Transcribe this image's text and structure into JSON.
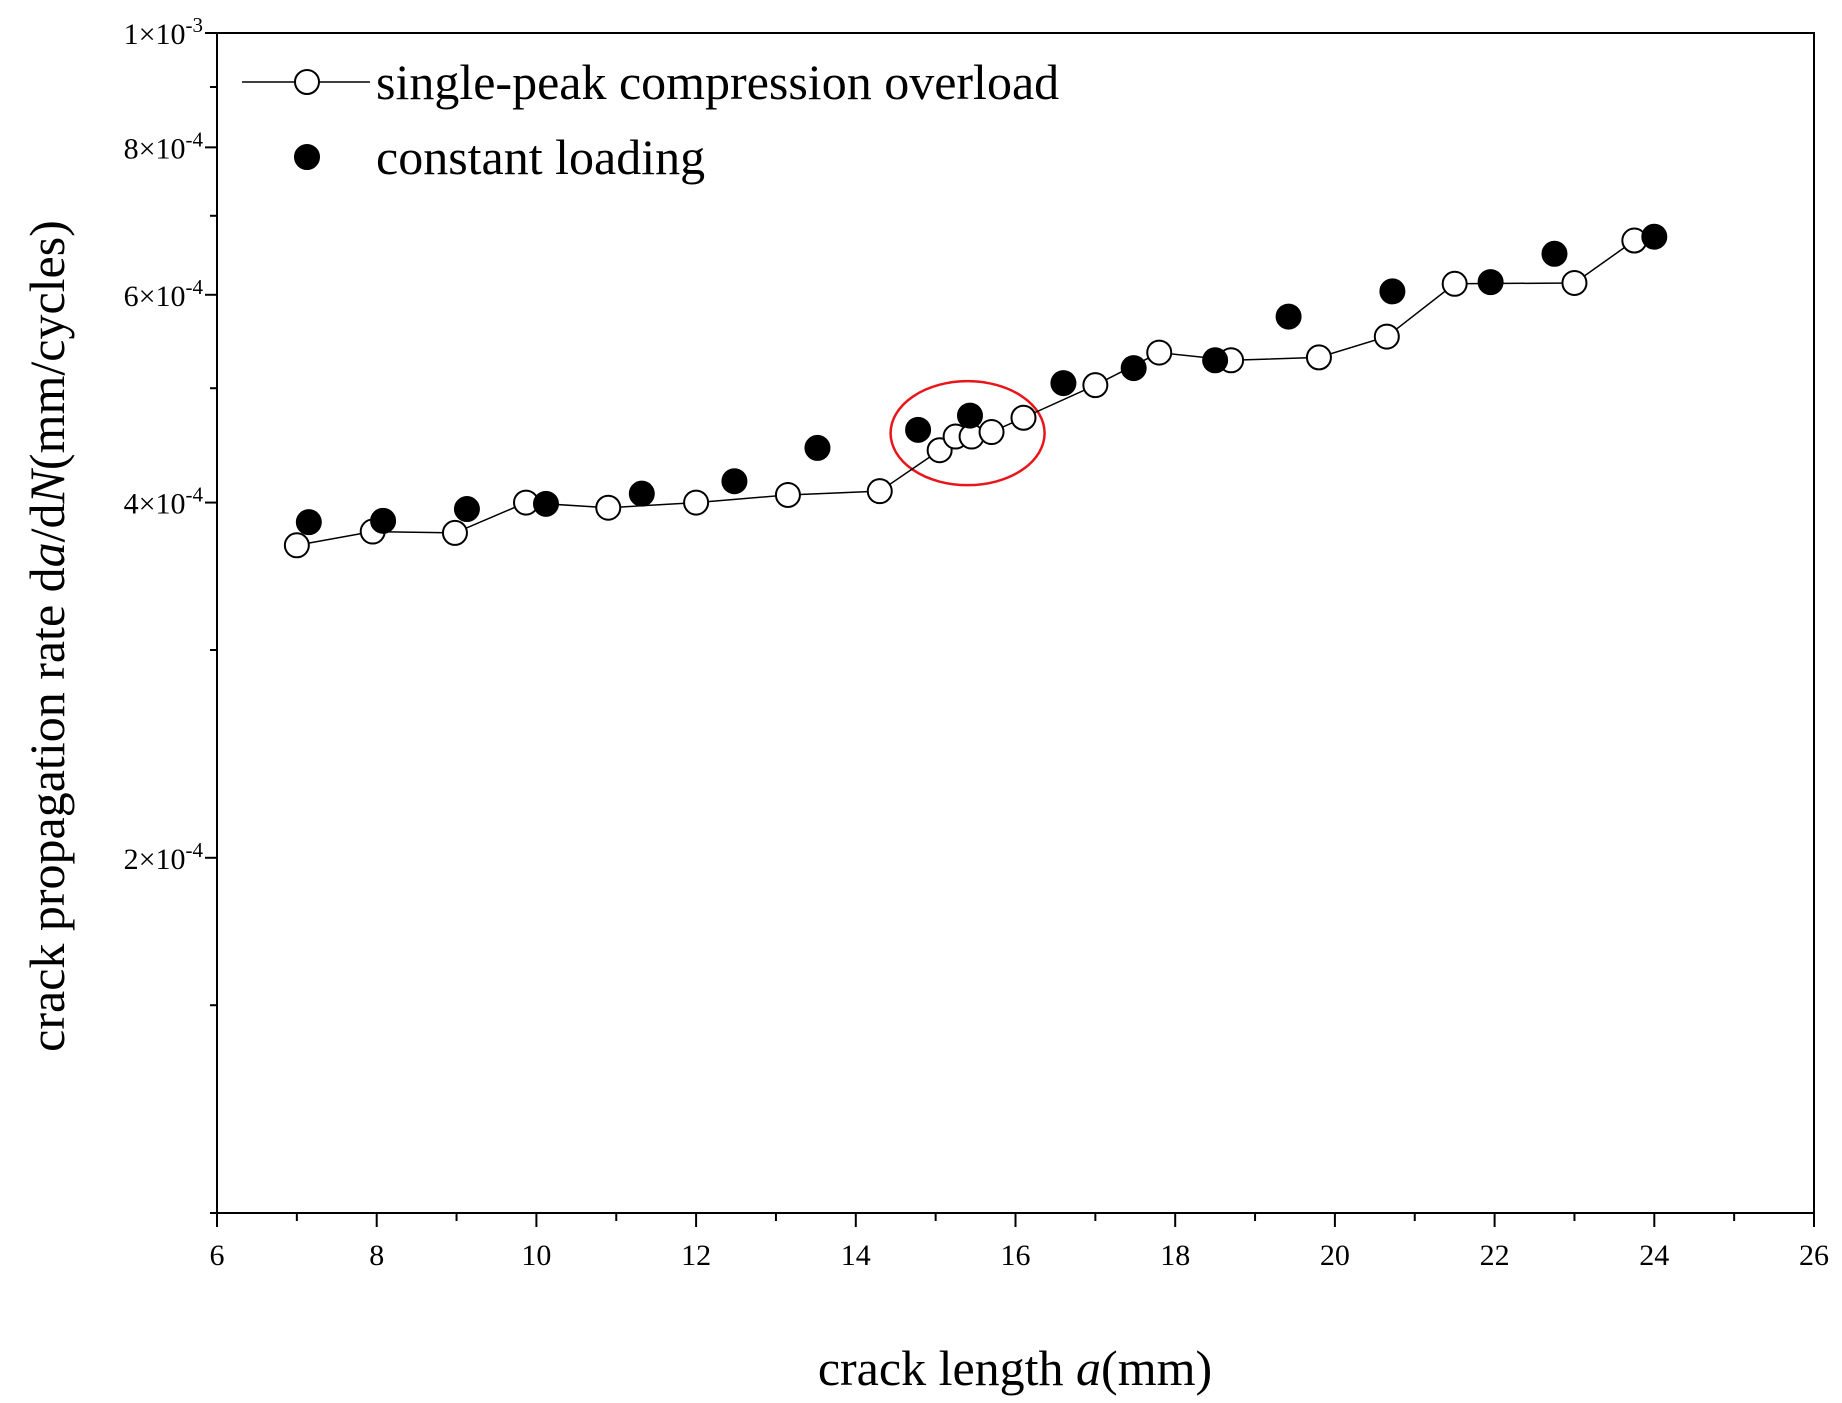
{
  "chart_data": {
    "type": "scatter",
    "title": "",
    "xlabel": {
      "prefix": "crack length ",
      "italic": "a",
      "suffix": "(mm)"
    },
    "ylabel": {
      "p1": "crack propagation rate d",
      "i1": "a",
      "p2": "/d",
      "i2": "N",
      "p3": "(mm/cycles)"
    },
    "xlim": [
      6,
      26
    ],
    "ylim": [
      0.0001,
      0.001
    ],
    "yscale": "log",
    "x_ticks": [
      6,
      8,
      10,
      12,
      14,
      16,
      18,
      20,
      22,
      24,
      26
    ],
    "x_tick_labels": [
      "6",
      "8",
      "10",
      "12",
      "14",
      "16",
      "18",
      "20",
      "22",
      "24",
      "26"
    ],
    "y_ticks": [
      {
        "value": 0.001,
        "mantissa": "1",
        "exp": "-3"
      },
      {
        "value": 0.0008,
        "mantissa": "8",
        "exp": "-4"
      },
      {
        "value": 0.0006,
        "mantissa": "6",
        "exp": "-4"
      },
      {
        "value": 0.0004,
        "mantissa": "4",
        "exp": "-4"
      },
      {
        "value": 0.0002,
        "mantissa": "2",
        "exp": "-4"
      }
    ],
    "y_minor_ticks": [
      0.0001,
      0.00015,
      0.0003,
      0.0005,
      0.0007,
      0.0009
    ],
    "times_sign": "×10",
    "legend_position": "top-left",
    "series": [
      {
        "name": "single-peak compression overload",
        "marker": "open-circle",
        "line": true,
        "x": [
          7.0,
          7.95,
          8.98,
          9.87,
          10.9,
          12.0,
          13.15,
          14.3,
          15.05,
          15.25,
          15.45,
          15.7,
          16.1,
          17.0,
          17.8,
          18.7,
          19.8,
          20.65,
          21.5,
          23.0,
          23.75
        ],
        "y": [
          0.000368,
          0.000378,
          0.000377,
          0.0004,
          0.000396,
          0.0004,
          0.000406,
          0.000409,
          0.000443,
          0.000455,
          0.000455,
          0.000459,
          0.000472,
          0.000503,
          0.000536,
          0.000528,
          0.000531,
          0.000553,
          0.000613,
          0.000614,
          0.000667
        ]
      },
      {
        "name": "constant loading",
        "marker": "filled-circle",
        "line": false,
        "x": [
          7.15,
          8.08,
          9.13,
          10.12,
          11.32,
          12.48,
          13.52,
          14.78,
          15.43,
          16.6,
          17.48,
          18.5,
          19.42,
          20.72,
          21.95,
          22.75,
          24.0
        ],
        "y": [
          0.000385,
          0.000386,
          0.000395,
          0.000399,
          0.000407,
          0.000417,
          0.000445,
          0.000461,
          0.000474,
          0.000505,
          0.00052,
          0.000528,
          0.000575,
          0.000604,
          0.000615,
          0.00065,
          0.000672
        ]
      }
    ],
    "annotation": {
      "type": "ellipse",
      "color": "#e8161b",
      "center_x": 15.4,
      "center_y": 0.000458,
      "note": "highlighted region"
    }
  }
}
